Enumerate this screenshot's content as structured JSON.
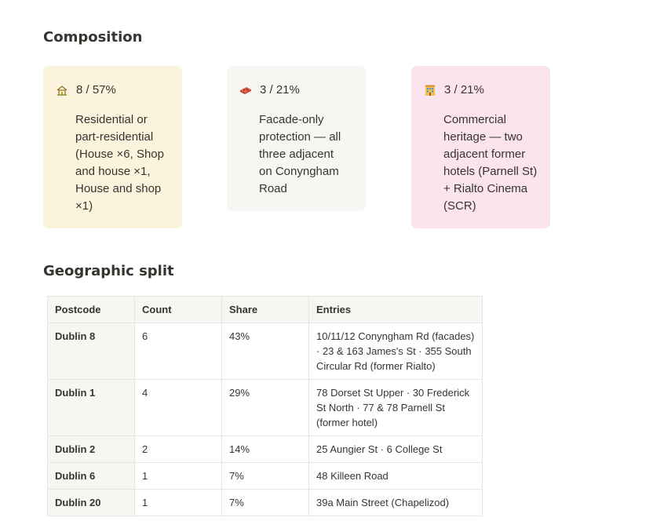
{
  "composition": {
    "heading": "Composition",
    "cards": [
      {
        "stat": "8 / 57%",
        "icon": "house-icon",
        "bg": "#fbf3db",
        "lines": [
          "Residential or",
          "part-residential",
          "(House ×6, Shop",
          "and house ×1,",
          "House and shop",
          "×1)"
        ]
      },
      {
        "stat": "3 / 21%",
        "icon": "brick-icon",
        "bg": "#f7f6f3",
        "lines": [
          "Facade-only",
          "protection — all",
          "three adjacent",
          "on Conyngham",
          "Road"
        ]
      },
      {
        "stat": "3 / 21%",
        "icon": "hotel-icon",
        "bg": "#fbe4ee",
        "lines": [
          "Commercial",
          "heritage — two",
          "adjacent former",
          "hotels (Parnell St)",
          "+ Rialto Cinema",
          "(SCR)"
        ]
      }
    ]
  },
  "geographic": {
    "heading": "Geographic split",
    "headers": [
      "Postcode",
      "Count",
      "Share",
      "Entries"
    ],
    "rows": [
      {
        "postcode": "Dublin 8",
        "count": "6",
        "share": "43%",
        "entries": [
          "10/11/12 Conyngham Rd (facades)",
          "· 23 & 163 James's St · 355 South",
          "Circular Rd (former Rialto)"
        ]
      },
      {
        "postcode": "Dublin 1",
        "count": "4",
        "share": "29%",
        "entries": [
          "78 Dorset St Upper · 30 Frederick",
          "St North · 77 & 78 Parnell St",
          "(former hotel)"
        ]
      },
      {
        "postcode": "Dublin 2",
        "count": "2",
        "share": "14%",
        "entries": [
          "25 Aungier St · 6 College St"
        ]
      },
      {
        "postcode": "Dublin 6",
        "count": "1",
        "share": "7%",
        "entries": [
          "48 Killeen Road"
        ]
      },
      {
        "postcode": "Dublin 20",
        "count": "1",
        "share": "7%",
        "entries": [
          "39a Main Street (Chapelizod)"
        ]
      }
    ]
  }
}
